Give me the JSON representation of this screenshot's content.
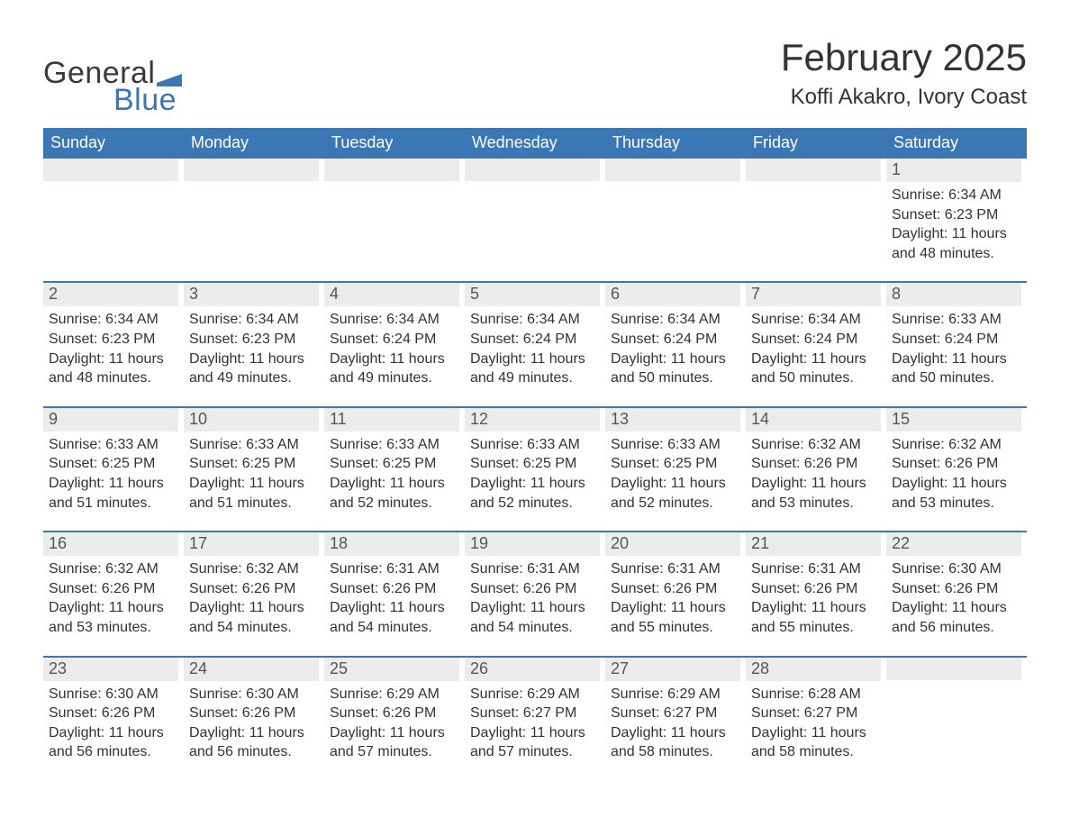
{
  "brand": {
    "general": "General",
    "blue": "Blue",
    "accent_color": "#3b76b5"
  },
  "title": "February 2025",
  "location": "Koffi Akakro, Ivory Coast",
  "day_headers": [
    "Sunday",
    "Monday",
    "Tuesday",
    "Wednesday",
    "Thursday",
    "Friday",
    "Saturday"
  ],
  "colors": {
    "header_bg": "#3b76b5",
    "header_text": "#ffffff",
    "day_num_bg": "#ececec",
    "text": "#333333",
    "row_divider": "#3b76b5",
    "background": "#ffffff"
  },
  "typography": {
    "title_fontsize": 42,
    "location_fontsize": 24,
    "dow_fontsize": 18,
    "body_fontsize": 16,
    "logo_fontsize": 34
  },
  "layout": {
    "columns": 7,
    "rows": 5,
    "first_day_column": 6
  },
  "weeks": [
    [
      null,
      null,
      null,
      null,
      null,
      null,
      {
        "n": "1",
        "sunrise": "Sunrise: 6:34 AM",
        "sunset": "Sunset: 6:23 PM",
        "daylight": "Daylight: 11 hours and 48 minutes."
      }
    ],
    [
      {
        "n": "2",
        "sunrise": "Sunrise: 6:34 AM",
        "sunset": "Sunset: 6:23 PM",
        "daylight": "Daylight: 11 hours and 48 minutes."
      },
      {
        "n": "3",
        "sunrise": "Sunrise: 6:34 AM",
        "sunset": "Sunset: 6:23 PM",
        "daylight": "Daylight: 11 hours and 49 minutes."
      },
      {
        "n": "4",
        "sunrise": "Sunrise: 6:34 AM",
        "sunset": "Sunset: 6:24 PM",
        "daylight": "Daylight: 11 hours and 49 minutes."
      },
      {
        "n": "5",
        "sunrise": "Sunrise: 6:34 AM",
        "sunset": "Sunset: 6:24 PM",
        "daylight": "Daylight: 11 hours and 49 minutes."
      },
      {
        "n": "6",
        "sunrise": "Sunrise: 6:34 AM",
        "sunset": "Sunset: 6:24 PM",
        "daylight": "Daylight: 11 hours and 50 minutes."
      },
      {
        "n": "7",
        "sunrise": "Sunrise: 6:34 AM",
        "sunset": "Sunset: 6:24 PM",
        "daylight": "Daylight: 11 hours and 50 minutes."
      },
      {
        "n": "8",
        "sunrise": "Sunrise: 6:33 AM",
        "sunset": "Sunset: 6:24 PM",
        "daylight": "Daylight: 11 hours and 50 minutes."
      }
    ],
    [
      {
        "n": "9",
        "sunrise": "Sunrise: 6:33 AM",
        "sunset": "Sunset: 6:25 PM",
        "daylight": "Daylight: 11 hours and 51 minutes."
      },
      {
        "n": "10",
        "sunrise": "Sunrise: 6:33 AM",
        "sunset": "Sunset: 6:25 PM",
        "daylight": "Daylight: 11 hours and 51 minutes."
      },
      {
        "n": "11",
        "sunrise": "Sunrise: 6:33 AM",
        "sunset": "Sunset: 6:25 PM",
        "daylight": "Daylight: 11 hours and 52 minutes."
      },
      {
        "n": "12",
        "sunrise": "Sunrise: 6:33 AM",
        "sunset": "Sunset: 6:25 PM",
        "daylight": "Daylight: 11 hours and 52 minutes."
      },
      {
        "n": "13",
        "sunrise": "Sunrise: 6:33 AM",
        "sunset": "Sunset: 6:25 PM",
        "daylight": "Daylight: 11 hours and 52 minutes."
      },
      {
        "n": "14",
        "sunrise": "Sunrise: 6:32 AM",
        "sunset": "Sunset: 6:26 PM",
        "daylight": "Daylight: 11 hours and 53 minutes."
      },
      {
        "n": "15",
        "sunrise": "Sunrise: 6:32 AM",
        "sunset": "Sunset: 6:26 PM",
        "daylight": "Daylight: 11 hours and 53 minutes."
      }
    ],
    [
      {
        "n": "16",
        "sunrise": "Sunrise: 6:32 AM",
        "sunset": "Sunset: 6:26 PM",
        "daylight": "Daylight: 11 hours and 53 minutes."
      },
      {
        "n": "17",
        "sunrise": "Sunrise: 6:32 AM",
        "sunset": "Sunset: 6:26 PM",
        "daylight": "Daylight: 11 hours and 54 minutes."
      },
      {
        "n": "18",
        "sunrise": "Sunrise: 6:31 AM",
        "sunset": "Sunset: 6:26 PM",
        "daylight": "Daylight: 11 hours and 54 minutes."
      },
      {
        "n": "19",
        "sunrise": "Sunrise: 6:31 AM",
        "sunset": "Sunset: 6:26 PM",
        "daylight": "Daylight: 11 hours and 54 minutes."
      },
      {
        "n": "20",
        "sunrise": "Sunrise: 6:31 AM",
        "sunset": "Sunset: 6:26 PM",
        "daylight": "Daylight: 11 hours and 55 minutes."
      },
      {
        "n": "21",
        "sunrise": "Sunrise: 6:31 AM",
        "sunset": "Sunset: 6:26 PM",
        "daylight": "Daylight: 11 hours and 55 minutes."
      },
      {
        "n": "22",
        "sunrise": "Sunrise: 6:30 AM",
        "sunset": "Sunset: 6:26 PM",
        "daylight": "Daylight: 11 hours and 56 minutes."
      }
    ],
    [
      {
        "n": "23",
        "sunrise": "Sunrise: 6:30 AM",
        "sunset": "Sunset: 6:26 PM",
        "daylight": "Daylight: 11 hours and 56 minutes."
      },
      {
        "n": "24",
        "sunrise": "Sunrise: 6:30 AM",
        "sunset": "Sunset: 6:26 PM",
        "daylight": "Daylight: 11 hours and 56 minutes."
      },
      {
        "n": "25",
        "sunrise": "Sunrise: 6:29 AM",
        "sunset": "Sunset: 6:26 PM",
        "daylight": "Daylight: 11 hours and 57 minutes."
      },
      {
        "n": "26",
        "sunrise": "Sunrise: 6:29 AM",
        "sunset": "Sunset: 6:27 PM",
        "daylight": "Daylight: 11 hours and 57 minutes."
      },
      {
        "n": "27",
        "sunrise": "Sunrise: 6:29 AM",
        "sunset": "Sunset: 6:27 PM",
        "daylight": "Daylight: 11 hours and 58 minutes."
      },
      {
        "n": "28",
        "sunrise": "Sunrise: 6:28 AM",
        "sunset": "Sunset: 6:27 PM",
        "daylight": "Daylight: 11 hours and 58 minutes."
      },
      null
    ]
  ]
}
